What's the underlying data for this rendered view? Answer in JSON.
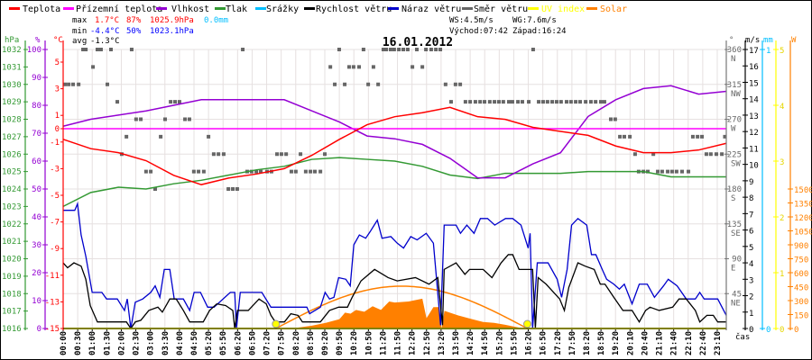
{
  "legend": [
    {
      "label": "Teplota",
      "color": "#ff0000"
    },
    {
      "label": "Přízemní teplota",
      "color": "#ff00ff"
    },
    {
      "label": "Vlhkost",
      "color": "#9400d3"
    },
    {
      "label": "Tlak",
      "color": "#339933"
    },
    {
      "label": "Srážky",
      "color": "#00bfff"
    },
    {
      "label": "Rychlost větru",
      "color": "#000000"
    },
    {
      "label": "Náraz větru",
      "color": "#0000cc"
    },
    {
      "label": "Směr větru",
      "color": "#666666"
    },
    {
      "label": "UV index",
      "color": "#ffff00"
    },
    {
      "label": "Solar",
      "color": "#ff8000"
    }
  ],
  "stats": {
    "max_label": "max",
    "max_temp": "1.7°C",
    "max_hum": "87%",
    "max_press": "1025.9hPa",
    "max_rain": "0.0mm",
    "min_label": "min",
    "min_temp": "-4.4°C",
    "min_hum": "50%",
    "min_press": "1023.1hPa",
    "avg_label": "avg",
    "avg_temp": "-1.3°C",
    "ws": "WS:4.5m/s",
    "wg": "WG:7.6m/s",
    "sunrise": "Východ:07:42",
    "sunset": "Západ:16:24"
  },
  "chart_data": {
    "type": "line",
    "title": "16.01.2012",
    "xlabel": "čas",
    "x_tick_labels": [
      "00:00",
      "00:30",
      "01:00",
      "01:30",
      "02:00",
      "02:30",
      "03:00",
      "03:30",
      "04:00",
      "04:50",
      "05:20",
      "05:50",
      "06:20",
      "06:50",
      "07:20",
      "07:50",
      "08:20",
      "08:50",
      "09:20",
      "09:50",
      "10:20",
      "10:50",
      "11:20",
      "11:50",
      "12:20",
      "12:50",
      "13:20",
      "13:50",
      "14:20",
      "14:50",
      "15:20",
      "15:50",
      "16:20",
      "16:50",
      "17:20",
      "17:50",
      "18:20",
      "18:50",
      "19:20",
      "20:10",
      "20:40",
      "21:10",
      "21:40",
      "22:10",
      "22:40",
      "23:10"
    ],
    "axes": {
      "pressure": {
        "unit": "hPa",
        "range": [
          1016,
          1032
        ],
        "ticks": [
          1016,
          1017,
          1018,
          1019,
          1020,
          1021,
          1022,
          1023,
          1024,
          1025,
          1026,
          1027,
          1028,
          1029,
          1030,
          1031,
          1032
        ]
      },
      "humidity": {
        "unit": "%",
        "range": [
          0,
          100
        ],
        "ticks": [
          0,
          10,
          20,
          30,
          40,
          50,
          60,
          70,
          80,
          90,
          100
        ]
      },
      "temperature": {
        "unit": "°C",
        "range": [
          -15,
          6
        ],
        "ticks": [
          -15,
          -13,
          -11,
          -9,
          -7,
          -5,
          -3,
          -1,
          0,
          1,
          3,
          5
        ]
      },
      "direction": {
        "unit": "°",
        "range": [
          0,
          360
        ],
        "ticks": [
          {
            "v": "360",
            "d": "N"
          },
          {
            "v": "315",
            "d": "NW"
          },
          {
            "v": "270",
            "d": "W"
          },
          {
            "v": "225",
            "d": "SW"
          },
          {
            "v": "180",
            "d": "S"
          },
          {
            "v": "135",
            "d": "SE"
          },
          {
            "v": "90",
            "d": "E"
          },
          {
            "v": "45",
            "d": "NE"
          }
        ]
      },
      "wind": {
        "unit": "m/s",
        "range": [
          0,
          17
        ],
        "ticks": [
          0,
          1,
          2,
          3,
          4,
          5,
          6,
          7,
          8,
          9,
          10,
          11,
          12,
          13,
          14,
          15,
          16,
          17
        ]
      },
      "rain": {
        "unit": "mm",
        "range": [
          0,
          1
        ],
        "ticks": [
          0,
          1
        ]
      },
      "uv": {
        "unit": "",
        "range": [
          0,
          5
        ],
        "ticks": [
          0,
          1,
          2,
          3,
          4,
          5
        ]
      },
      "solar": {
        "unit": "W",
        "range": [
          0,
          3000
        ],
        "ticks": [
          0,
          150,
          300,
          450,
          600,
          750,
          900,
          1050,
          1200,
          1350,
          1500
        ]
      }
    },
    "hours": [
      0,
      1,
      2,
      3,
      4,
      5,
      6,
      7,
      8,
      9,
      10,
      11,
      12,
      13,
      14,
      15,
      16,
      17,
      18,
      19,
      20,
      21,
      22,
      23,
      24
    ],
    "series": [
      {
        "name": "Teplota",
        "unit": "°C",
        "values": [
          -0.8,
          -1.5,
          -1.8,
          -2.4,
          -3.5,
          -4.2,
          -3.7,
          -3.4,
          -3.0,
          -2.0,
          -0.8,
          0.3,
          0.9,
          1.2,
          1.6,
          0.9,
          0.7,
          0.1,
          -0.2,
          -0.5,
          -1.3,
          -1.8,
          -1.8,
          -1.6,
          -1.1
        ]
      },
      {
        "name": "Přízemní teplota",
        "unit": "°C",
        "values": [
          0,
          0,
          0,
          0,
          0,
          0,
          0,
          0,
          0,
          0,
          0,
          0,
          0,
          0,
          0,
          0,
          0,
          0,
          0,
          0,
          0,
          0,
          0,
          0,
          0
        ]
      },
      {
        "name": "Vlhkost",
        "unit": "%",
        "values": [
          72.5,
          75,
          76.5,
          78,
          80,
          82,
          82,
          82,
          82,
          78,
          74,
          69,
          68,
          66,
          61,
          54,
          54,
          59,
          63,
          76,
          82,
          86,
          87,
          84,
          85
        ]
      },
      {
        "name": "Tlak",
        "unit": "hPa",
        "values": [
          1023.0,
          1023.8,
          1024.1,
          1024.0,
          1024.3,
          1024.5,
          1024.8,
          1025.1,
          1025.3,
          1025.7,
          1025.8,
          1025.7,
          1025.6,
          1025.3,
          1024.8,
          1024.6,
          1024.9,
          1024.9,
          1024.9,
          1025.0,
          1025.0,
          1025.0,
          1024.7,
          1024.7,
          1024.7
        ]
      }
    ],
    "wind_gust": [
      [
        0,
        7.2
      ],
      [
        0.42,
        7.2
      ],
      [
        0.52,
        7.6
      ],
      [
        0.65,
        5.7
      ],
      [
        0.82,
        4.4
      ],
      [
        1.05,
        2.2
      ],
      [
        1.4,
        2.2
      ],
      [
        1.57,
        1.8
      ],
      [
        1.96,
        1.8
      ],
      [
        2.22,
        1.1
      ],
      [
        2.32,
        1.8
      ],
      [
        2.45,
        0
      ],
      [
        2.61,
        1.6
      ],
      [
        2.88,
        1.8
      ],
      [
        3.17,
        2.2
      ],
      [
        3.33,
        2.6
      ],
      [
        3.5,
        1.9
      ],
      [
        3.66,
        3.6
      ],
      [
        3.86,
        3.6
      ],
      [
        4.02,
        1.8
      ],
      [
        4.35,
        1.8
      ],
      [
        4.58,
        1.1
      ],
      [
        4.74,
        2.2
      ],
      [
        4.97,
        2.2
      ],
      [
        5.23,
        1.3
      ],
      [
        5.46,
        1.3
      ],
      [
        6.05,
        2.2
      ],
      [
        6.21,
        2.2
      ],
      [
        6.27,
        0
      ],
      [
        6.41,
        2.2
      ],
      [
        7.19,
        2.2
      ],
      [
        7.52,
        1.3
      ],
      [
        8.82,
        1.3
      ],
      [
        8.92,
        0.9
      ],
      [
        9.31,
        1.3
      ],
      [
        9.48,
        2.2
      ],
      [
        9.64,
        1.8
      ],
      [
        9.8,
        1.9
      ],
      [
        9.97,
        3.1
      ],
      [
        10.23,
        3.0
      ],
      [
        10.39,
        2.6
      ],
      [
        10.52,
        5.1
      ],
      [
        10.72,
        5.7
      ],
      [
        10.95,
        5.5
      ],
      [
        11.11,
        5.9
      ],
      [
        11.37,
        6.6
      ],
      [
        11.54,
        5.5
      ],
      [
        11.86,
        5.6
      ],
      [
        12.09,
        5.2
      ],
      [
        12.32,
        4.9
      ],
      [
        12.58,
        5.6
      ],
      [
        12.81,
        5.4
      ],
      [
        13.14,
        5.8
      ],
      [
        13.4,
        5.2
      ],
      [
        13.66,
        0.2
      ],
      [
        13.79,
        6.3
      ],
      [
        14.22,
        6.3
      ],
      [
        14.38,
        5.8
      ],
      [
        14.61,
        6.3
      ],
      [
        14.87,
        5.8
      ],
      [
        15.1,
        6.7
      ],
      [
        15.36,
        6.7
      ],
      [
        15.62,
        6.3
      ],
      [
        16.01,
        6.7
      ],
      [
        16.27,
        6.7
      ],
      [
        16.57,
        6.3
      ],
      [
        16.83,
        4.9
      ],
      [
        16.9,
        5.8
      ],
      [
        16.99,
        0
      ],
      [
        17.16,
        4.0
      ],
      [
        17.55,
        4.0
      ],
      [
        17.88,
        3.0
      ],
      [
        18.04,
        1.9
      ],
      [
        18.24,
        3.6
      ],
      [
        18.4,
        6.3
      ],
      [
        18.63,
        6.7
      ],
      [
        18.95,
        6.3
      ],
      [
        19.12,
        4.5
      ],
      [
        19.28,
        4.5
      ],
      [
        19.51,
        3.6
      ],
      [
        19.67,
        3.0
      ],
      [
        19.93,
        2.7
      ],
      [
        20.13,
        2.4
      ],
      [
        20.31,
        2.7
      ],
      [
        20.59,
        1.5
      ],
      [
        20.85,
        2.7
      ],
      [
        21.14,
        2.7
      ],
      [
        21.4,
        1.9
      ],
      [
        21.73,
        2.6
      ],
      [
        21.9,
        3.0
      ],
      [
        22.22,
        2.6
      ],
      [
        22.55,
        1.8
      ],
      [
        22.88,
        1.8
      ],
      [
        23.04,
        2.2
      ],
      [
        23.2,
        1.8
      ],
      [
        23.69,
        1.8
      ],
      [
        24,
        0.8
      ]
    ],
    "wind_speed": [
      [
        0,
        4.0
      ],
      [
        0.16,
        3.7
      ],
      [
        0.39,
        4.0
      ],
      [
        0.65,
        3.8
      ],
      [
        0.82,
        3.0
      ],
      [
        0.98,
        1.4
      ],
      [
        1.24,
        0.4
      ],
      [
        2.29,
        0.4
      ],
      [
        2.45,
        0
      ],
      [
        2.61,
        0.4
      ],
      [
        2.81,
        0.5
      ],
      [
        3.1,
        1.1
      ],
      [
        3.43,
        1.3
      ],
      [
        3.59,
        1.0
      ],
      [
        3.76,
        1.5
      ],
      [
        3.86,
        1.8
      ],
      [
        4.09,
        1.8
      ],
      [
        4.35,
        1.1
      ],
      [
        4.58,
        0.4
      ],
      [
        5.07,
        0.4
      ],
      [
        5.3,
        1.1
      ],
      [
        5.56,
        1.5
      ],
      [
        5.88,
        1.4
      ],
      [
        6.14,
        1.1
      ],
      [
        6.21,
        0
      ],
      [
        6.31,
        1.1
      ],
      [
        6.7,
        1.1
      ],
      [
        7.09,
        1.8
      ],
      [
        7.35,
        1.5
      ],
      [
        7.52,
        0.8
      ],
      [
        7.68,
        0.4
      ],
      [
        8.01,
        0.4
      ],
      [
        8.24,
        0.9
      ],
      [
        8.5,
        0.8
      ],
      [
        8.66,
        0.4
      ],
      [
        9.31,
        0.4
      ],
      [
        9.64,
        1.1
      ],
      [
        9.97,
        1.3
      ],
      [
        10.29,
        1.3
      ],
      [
        10.46,
        1.9
      ],
      [
        10.78,
        2.9
      ],
      [
        11.27,
        3.6
      ],
      [
        11.76,
        3.1
      ],
      [
        12.09,
        2.9
      ],
      [
        12.75,
        3.1
      ],
      [
        13.24,
        2.7
      ],
      [
        13.56,
        3.1
      ],
      [
        13.73,
        0.2
      ],
      [
        13.79,
        3.6
      ],
      [
        14.22,
        4.0
      ],
      [
        14.54,
        3.3
      ],
      [
        14.71,
        3.6
      ],
      [
        15.2,
        3.6
      ],
      [
        15.52,
        3.1
      ],
      [
        15.85,
        4.0
      ],
      [
        16.11,
        4.5
      ],
      [
        16.27,
        4.5
      ],
      [
        16.5,
        3.6
      ],
      [
        16.99,
        3.6
      ],
      [
        17.09,
        0
      ],
      [
        17.19,
        3.1
      ],
      [
        17.48,
        2.7
      ],
      [
        17.97,
        1.8
      ],
      [
        18.14,
        1.1
      ],
      [
        18.3,
        2.5
      ],
      [
        18.63,
        4.0
      ],
      [
        18.89,
        3.8
      ],
      [
        19.22,
        3.6
      ],
      [
        19.44,
        2.7
      ],
      [
        19.61,
        2.7
      ],
      [
        19.93,
        1.9
      ],
      [
        20.26,
        1.1
      ],
      [
        20.59,
        1.1
      ],
      [
        20.85,
        0.4
      ],
      [
        21.08,
        1.1
      ],
      [
        21.24,
        1.3
      ],
      [
        21.57,
        1.1
      ],
      [
        22.06,
        1.3
      ],
      [
        22.29,
        1.8
      ],
      [
        22.55,
        1.8
      ],
      [
        22.88,
        1.1
      ],
      [
        23.04,
        0.4
      ],
      [
        23.3,
        0.8
      ],
      [
        23.53,
        0.8
      ],
      [
        23.69,
        0.4
      ],
      [
        24,
        0.4
      ]
    ],
    "solar": [
      [
        7.7,
        0
      ],
      [
        8.5,
        10
      ],
      [
        9.0,
        30
      ],
      [
        9.5,
        60
      ],
      [
        10.0,
        100
      ],
      [
        10.2,
        170
      ],
      [
        10.4,
        160
      ],
      [
        10.6,
        200
      ],
      [
        10.9,
        180
      ],
      [
        11.2,
        240
      ],
      [
        11.5,
        200
      ],
      [
        11.8,
        290
      ],
      [
        12.0,
        280
      ],
      [
        12.5,
        290
      ],
      [
        13.0,
        320
      ],
      [
        13.15,
        110
      ],
      [
        13.4,
        230
      ],
      [
        13.6,
        230
      ],
      [
        13.7,
        0
      ],
      [
        13.8,
        190
      ],
      [
        14.3,
        140
      ],
      [
        14.8,
        100
      ],
      [
        15.2,
        70
      ],
      [
        15.6,
        60
      ],
      [
        16.0,
        40
      ],
      [
        16.5,
        10
      ],
      [
        16.8,
        0
      ]
    ],
    "solar_theoretical_max": 455,
    "sun_hours": [
      7.7,
      16.8
    ],
    "wind_direction": [
      {
        "deg": 360,
        "hours": [
          0.72,
          0.82,
          1.24,
          1.37,
          1.73,
          2.48,
          6.5,
          9.99,
          10.87,
          11.59,
          11.69,
          11.85,
          11.98,
          12.15,
          12.31,
          12.47,
          12.8,
          13.13,
          13.32,
          13.49,
          13.65,
          17.01
        ]
      },
      {
        "deg": 337.5,
        "hours": [
          1.08,
          9.67,
          10.35,
          10.51,
          10.71,
          11.23,
          12.64,
          13.0
        ]
      },
      {
        "deg": 315,
        "hours": [
          0.07,
          0.2,
          0.36,
          0.56,
          1.6,
          9.83,
          10.19,
          11.04,
          11.4,
          13.84,
          14.2,
          14.37
        ]
      },
      {
        "deg": 292.5,
        "hours": [
          1.96,
          3.89,
          4.05,
          4.21,
          14.04,
          14.56,
          14.73,
          14.92,
          15.09,
          15.25,
          15.44,
          15.61,
          15.77,
          15.93,
          16.13,
          16.26,
          16.46,
          16.62,
          16.85,
          17.21,
          17.37,
          17.53,
          17.7,
          17.86,
          18.02,
          18.22,
          18.38,
          18.55,
          18.71,
          18.91,
          19.1,
          19.27,
          19.46,
          19.59
        ]
      },
      {
        "deg": 270,
        "hours": [
          2.64,
          2.81,
          3.69,
          4.41,
          4.57,
          19.82,
          19.98
        ]
      },
      {
        "deg": 247.5,
        "hours": [
          2.29,
          3.53,
          5.26,
          20.15,
          20.31,
          20.51,
          22.79,
          22.96,
          23.12,
          23.95
        ]
      },
      {
        "deg": 225,
        "hours": [
          2.12,
          5.45,
          5.62,
          5.81,
          7.74,
          7.9,
          8.07,
          8.59,
          9.47,
          20.7,
          21.36,
          23.28,
          23.44,
          23.64,
          23.84
        ]
      },
      {
        "deg": 202.5,
        "hours": [
          3.0,
          3.17,
          4.73,
          4.9,
          5.09,
          6.66,
          6.82,
          6.99,
          7.15,
          7.38,
          7.54,
          8.26,
          8.42,
          8.78,
          8.95,
          9.11,
          9.31,
          20.83,
          21.0,
          21.16,
          21.52,
          21.68,
          21.88,
          22.04,
          22.2,
          22.4,
          22.63
        ]
      },
      {
        "deg": 180,
        "hours": [
          3.33,
          5.98,
          6.14,
          6.3
        ]
      }
    ]
  }
}
